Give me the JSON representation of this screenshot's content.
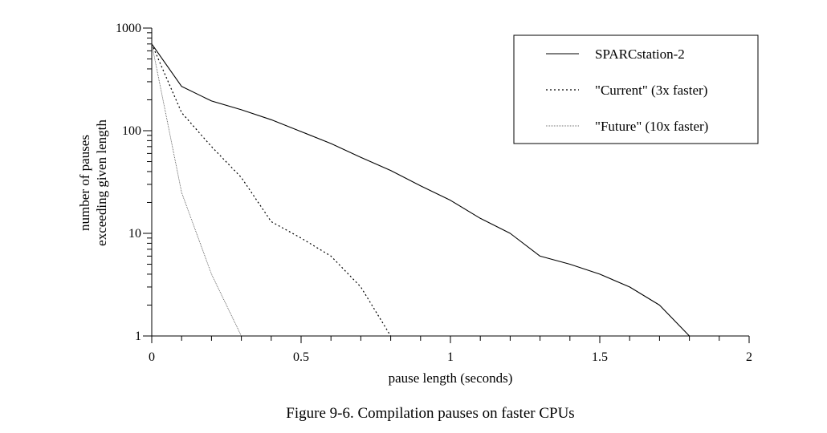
{
  "chart_data": {
    "type": "line",
    "title": "",
    "caption": "Figure 9-6.  Compilation pauses on faster CPUs",
    "xlabel": "pause length (seconds)",
    "ylabel_lines": [
      "number of pauses",
      "exceeding given length"
    ],
    "xlim": [
      0,
      2
    ],
    "ylim": [
      1,
      1000
    ],
    "yscale": "log",
    "x_ticks": [
      0,
      0.5,
      1,
      1.5,
      2
    ],
    "x_tick_labels": [
      "0",
      "0.5",
      "1",
      "1.5",
      "2"
    ],
    "y_ticks": [
      1,
      10,
      100,
      1000
    ],
    "y_tick_labels": [
      "1",
      "10",
      "100",
      "1000"
    ],
    "grid": false,
    "legend_position": "top-right",
    "series": [
      {
        "name": "SPARCstation-2",
        "style": "solid",
        "x": [
          0,
          0.1,
          0.2,
          0.3,
          0.4,
          0.5,
          0.6,
          0.7,
          0.8,
          0.9,
          1.0,
          1.1,
          1.2,
          1.3,
          1.4,
          1.5,
          1.6,
          1.7,
          1.8
        ],
        "y": [
          700,
          270,
          195,
          160,
          128,
          98,
          75,
          55,
          41,
          29,
          21,
          14,
          10,
          6,
          5,
          4,
          3,
          2,
          1
        ]
      },
      {
        "name": "\"Current\" (3x faster)",
        "style": "dotted",
        "x": [
          0,
          0.1,
          0.2,
          0.3,
          0.4,
          0.5,
          0.6,
          0.7,
          0.8
        ],
        "y": [
          700,
          150,
          70,
          35,
          13,
          9,
          6,
          3,
          1
        ]
      },
      {
        "name": "\"Future\" (10x faster)",
        "style": "fine-dotted",
        "x": [
          0,
          0.1,
          0.2,
          0.3
        ],
        "y": [
          700,
          25,
          4,
          1
        ]
      }
    ]
  }
}
